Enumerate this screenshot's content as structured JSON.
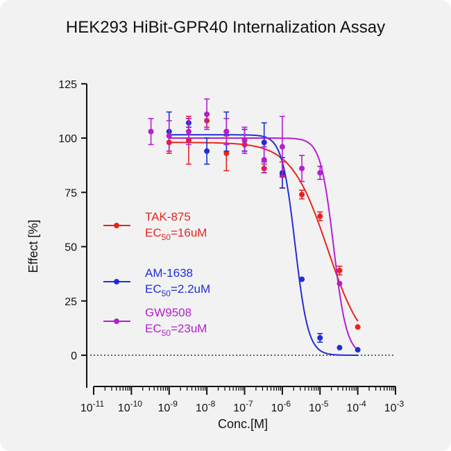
{
  "chart_data": {
    "type": "scatter",
    "title": "HEK293 HiBit-GPR40 Internalization Assay",
    "xlabel": "Conc.[M]",
    "ylabel": "Effect  [%]",
    "xscale": "log10",
    "xlim_exp": [
      -11,
      -3
    ],
    "ylim": [
      -15,
      125
    ],
    "yticks": [
      0,
      25,
      50,
      75,
      100,
      125
    ],
    "xtick_exponents": [
      "-11",
      "-10",
      "-9",
      "-8",
      "-7",
      "-6",
      "-5",
      "-4",
      "-3"
    ],
    "xtick_base": "10",
    "zero_line": "dotted",
    "legend_position": "left-middle",
    "series": [
      {
        "name": "TAK-875",
        "ec50_label": "EC",
        "ec50_sub": "50",
        "ec50_value": "=16uM",
        "color": "#e8231f",
        "fit": {
          "bottom": 0,
          "top": 98,
          "log_ec50": -4.8,
          "hill": 0.9
        },
        "points": [
          {
            "x": 1e-09,
            "y": 98,
            "err": 5
          },
          {
            "x": 3.3e-09,
            "y": 99,
            "err": 11
          },
          {
            "x": 1e-08,
            "y": 108,
            "err": 3
          },
          {
            "x": 3.3e-08,
            "y": 93,
            "err": 8
          },
          {
            "x": 1e-07,
            "y": 97,
            "err": 3
          },
          {
            "x": 3.3e-07,
            "y": 86,
            "err": 2
          },
          {
            "x": 1e-06,
            "y": 83,
            "err": 6
          },
          {
            "x": 3.3e-06,
            "y": 74,
            "err": 2
          },
          {
            "x": 1e-05,
            "y": 64,
            "err": 2
          },
          {
            "x": 3.3e-05,
            "y": 39,
            "err": 2
          },
          {
            "x": 0.0001,
            "y": 13,
            "err": 0
          }
        ]
      },
      {
        "name": "AM-1638",
        "ec50_label": "EC",
        "ec50_sub": "50",
        "ec50_value": "=2.2uM",
        "color": "#1f2ed6",
        "fit": {
          "bottom": 0,
          "top": 101.5,
          "log_ec50": -5.66,
          "hill": 2.5
        },
        "points": [
          {
            "x": 1e-09,
            "y": 103,
            "err": 9
          },
          {
            "x": 3.3e-09,
            "y": 107,
            "err": 2
          },
          {
            "x": 1e-08,
            "y": 94,
            "err": 6
          },
          {
            "x": 3.3e-08,
            "y": 103,
            "err": 9
          },
          {
            "x": 1e-07,
            "y": 99,
            "err": 5
          },
          {
            "x": 3.3e-07,
            "y": 98,
            "err": 9
          },
          {
            "x": 1e-06,
            "y": 84,
            "err": 7
          },
          {
            "x": 3.3e-06,
            "y": 35,
            "err": 0
          },
          {
            "x": 1e-05,
            "y": 8,
            "err": 2
          },
          {
            "x": 3.3e-05,
            "y": 3.5,
            "err": 0
          },
          {
            "x": 0.0001,
            "y": 2.5,
            "err": 0
          }
        ]
      },
      {
        "name": "GW9508",
        "ec50_label": "EC",
        "ec50_sub": "50",
        "ec50_value": "=23uM",
        "color": "#b41fcf",
        "fit": {
          "bottom": 0,
          "top": 100,
          "log_ec50": -4.64,
          "hill": 2.5
        },
        "points": [
          {
            "x": 3.3e-10,
            "y": 103,
            "err": 6
          },
          {
            "x": 1e-09,
            "y": 101,
            "err": 7
          },
          {
            "x": 3.3e-09,
            "y": 103,
            "err": 6
          },
          {
            "x": 1e-08,
            "y": 111,
            "err": 7
          },
          {
            "x": 3.3e-08,
            "y": 103,
            "err": 6
          },
          {
            "x": 1e-07,
            "y": 99,
            "err": 6
          },
          {
            "x": 3.3e-07,
            "y": 90,
            "err": 6
          },
          {
            "x": 1e-06,
            "y": 96,
            "err": 14
          },
          {
            "x": 3.3e-06,
            "y": 86,
            "err": 6
          },
          {
            "x": 1e-05,
            "y": 84,
            "err": 3
          },
          {
            "x": 3.3e-05,
            "y": 33,
            "err": 0
          }
        ]
      }
    ]
  }
}
